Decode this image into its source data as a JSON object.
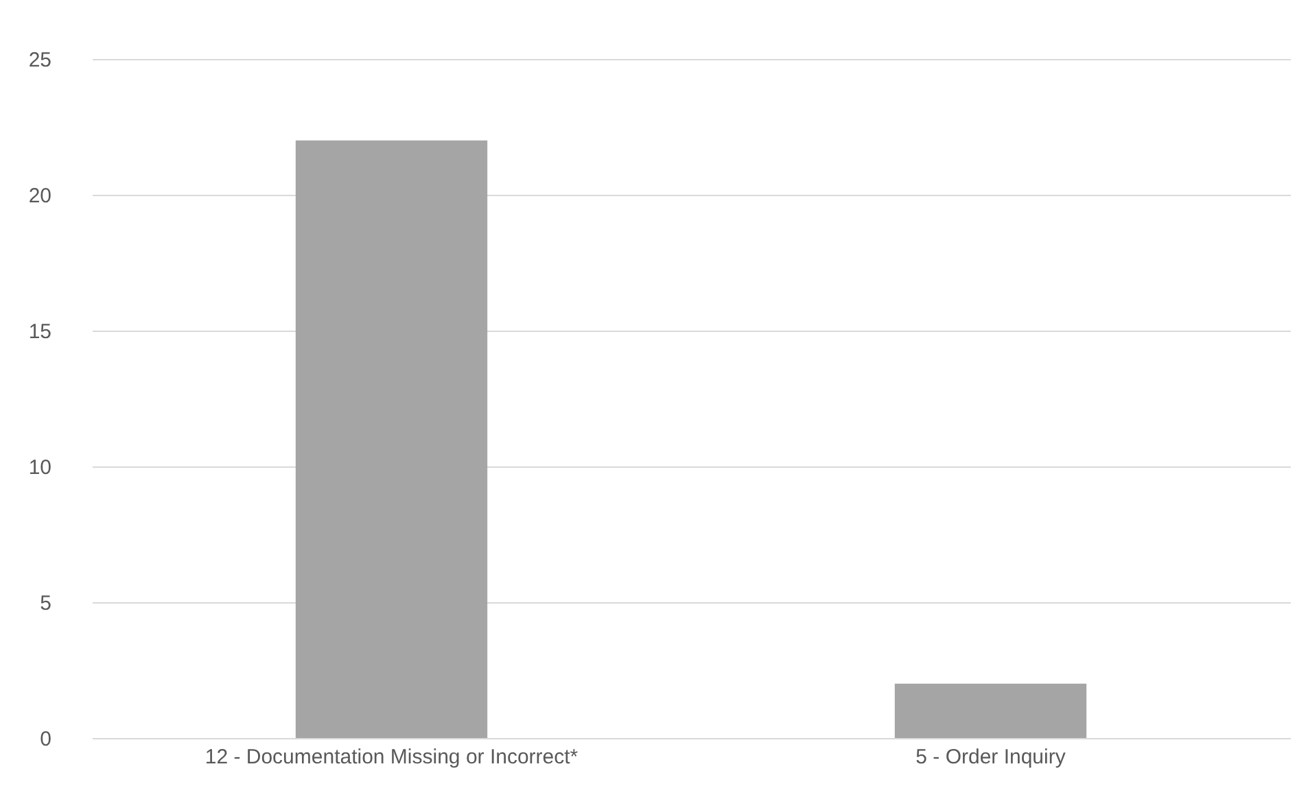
{
  "chart_data": {
    "type": "bar",
    "categories": [
      "12 - Documentation Missing or Incorrect*",
      "5 - Order Inquiry"
    ],
    "values": [
      22,
      2
    ],
    "color": "#a5a5a5",
    "ylim": [
      0,
      25
    ],
    "yticks": [
      0,
      5,
      10,
      15,
      20,
      25
    ],
    "grid": "y"
  }
}
